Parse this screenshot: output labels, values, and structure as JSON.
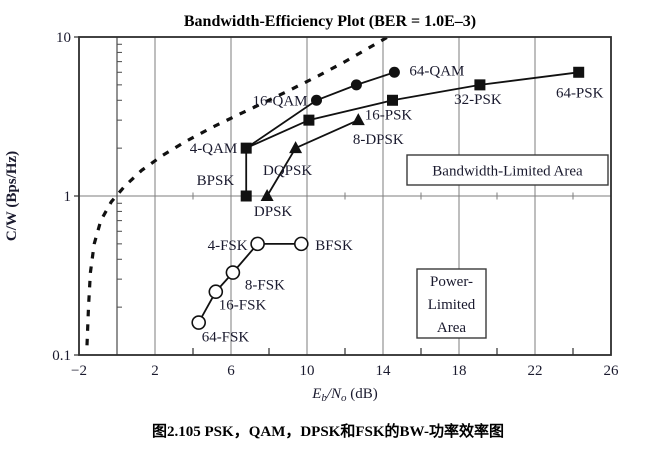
{
  "caption": "图2.105 PSK，QAM，DPSK和FSK的BW-功率效率图",
  "chart_data": {
    "type": "line",
    "title": "Bandwidth-Efficiency Plot (BER = 1.0E–3)",
    "ylabel": "C/W (Bps/Hz)",
    "xlabel_parts": {
      "main1": "E",
      "sub1": "b",
      "main2": "/N",
      "sub2": "o",
      "main3": " (dB)"
    },
    "xlim": [
      -2,
      26
    ],
    "ylim": [
      0.1,
      10
    ],
    "x_scale": "linear",
    "y_scale": "log",
    "grid": "on",
    "x_tick_labels": [
      {
        "v": -2,
        "label": "−2"
      },
      {
        "v": 2,
        "label": "2"
      },
      {
        "v": 6,
        "label": "6"
      },
      {
        "v": 10,
        "label": "10"
      },
      {
        "v": 14,
        "label": "14"
      },
      {
        "v": 18,
        "label": "18"
      },
      {
        "v": 22,
        "label": "22"
      },
      {
        "v": 26,
        "label": "26"
      }
    ],
    "x_gridlines": [
      2,
      6,
      10,
      14,
      18,
      22
    ],
    "x_minor_ticks": [
      4,
      8,
      12,
      16,
      20,
      24
    ],
    "zero_db_axis_line": 0,
    "y_tick_labels": [
      {
        "v": 0.1,
        "label": "0.1"
      },
      {
        "v": 1,
        "label": "1"
      },
      {
        "v": 10,
        "label": "10"
      }
    ],
    "y_gridlines": [
      1
    ],
    "series": [
      {
        "name": "PSK",
        "marker": "square",
        "points": [
          {
            "x": 6.8,
            "y": 1,
            "label": "BPSK",
            "anchor": "end",
            "dx": -12,
            "dy": -11
          },
          {
            "x": 6.8,
            "y": 2,
            "label": "4-QAM",
            "anchor": "end",
            "dx": -9,
            "dy": 5
          },
          {
            "x": 10.1,
            "y": 3
          },
          {
            "x": 14.5,
            "y": 4,
            "label": "16-PSK",
            "anchor": "middle",
            "dx": -4,
            "dy": 19
          },
          {
            "x": 19.1,
            "y": 5,
            "label": "32-PSK",
            "anchor": "middle",
            "dx": -2,
            "dy": 19
          },
          {
            "x": 24.3,
            "y": 6,
            "label": "64-PSK",
            "anchor": "middle",
            "dx": 1,
            "dy": 25
          }
        ]
      },
      {
        "name": "QAM",
        "marker": "circle",
        "points": [
          {
            "x": 6.8,
            "y": 2,
            "no_marker": true
          },
          {
            "x": 10.5,
            "y": 4,
            "label": "16-QAM",
            "anchor": "end",
            "dx": -9,
            "dy": 5
          },
          {
            "x": 12.6,
            "y": 5
          },
          {
            "x": 14.6,
            "y": 6,
            "label": "64-QAM",
            "anchor": "start",
            "dx": 15,
            "dy": 3
          }
        ]
      },
      {
        "name": "DPSK",
        "marker": "triangle",
        "points": [
          {
            "x": 7.9,
            "y": 1,
            "label": "DPSK",
            "anchor": "middle",
            "dx": 6,
            "dy": 20
          },
          {
            "x": 9.4,
            "y": 2,
            "label": "DQPSK",
            "anchor": "middle",
            "dx": -8,
            "dy": 27
          },
          {
            "x": 12.7,
            "y": 3,
            "label": "8-DPSK",
            "anchor": "middle",
            "dx": 20,
            "dy": 24
          }
        ]
      },
      {
        "name": "FSK",
        "marker": "open-circle",
        "points": [
          {
            "x": 4.3,
            "y": 0.16,
            "label": "64-FSK",
            "anchor": "start",
            "dx": 3,
            "dy": 19
          },
          {
            "x": 5.2,
            "y": 0.25,
            "label": "16-FSK",
            "anchor": "start",
            "dx": 3,
            "dy": 18
          },
          {
            "x": 6.1,
            "y": 0.33,
            "label": "8-FSK",
            "anchor": "start",
            "dx": 12,
            "dy": 17
          },
          {
            "x": 7.4,
            "y": 0.5,
            "label": "4-FSK",
            "anchor": "end",
            "dx": -10,
            "dy": 6
          },
          {
            "x": 9.7,
            "y": 0.5,
            "label": "BFSK",
            "anchor": "start",
            "dx": 14,
            "dy": 6
          }
        ]
      }
    ],
    "shannon_limit_curve": {
      "style": "dashed",
      "points": [
        [
          -1.58,
          0.115
        ],
        [
          -1.5,
          0.2
        ],
        [
          -1.4,
          0.33
        ],
        [
          -1.2,
          0.5
        ],
        [
          -0.85,
          0.7
        ],
        [
          -0.3,
          0.92
        ],
        [
          0.4,
          1.15
        ],
        [
          1.3,
          1.45
        ],
        [
          2.4,
          1.8
        ],
        [
          3.6,
          2.2
        ],
        [
          5.0,
          2.7
        ],
        [
          6.4,
          3.25
        ],
        [
          7.8,
          3.9
        ],
        [
          9.2,
          4.7
        ],
        [
          10.6,
          5.7
        ],
        [
          12.0,
          7.0
        ],
        [
          13.3,
          8.6
        ],
        [
          14.5,
          10.4
        ]
      ]
    },
    "annotations": [
      {
        "id": "bandwidth-limited-area",
        "lines": [
          "Bandwidth-Limited Area"
        ],
        "x1": 407,
        "y1": 155,
        "x2": 608,
        "y2": 185
      },
      {
        "id": "power-limited-area",
        "lines": [
          "Power-",
          "Limited",
          "Area"
        ],
        "x1": 417,
        "y1": 269,
        "x2": 486,
        "y2": 338
      }
    ],
    "colors": {
      "data_line": "#111111",
      "text": "#1a1a2e",
      "title": "#000000",
      "grid": "#7d7d7d",
      "border": "#2e2e2e",
      "box_fill": "#ffffff"
    }
  }
}
